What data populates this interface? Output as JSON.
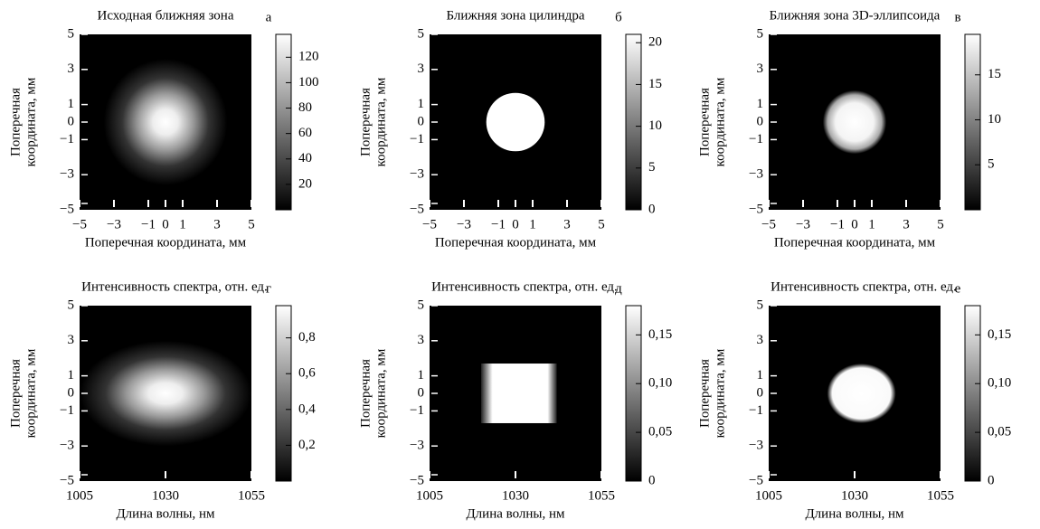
{
  "chart_data": [
    {
      "type": "heatmap",
      "title": "Исходная ближняя зона",
      "annotation": "а",
      "xlabel": "Поперечная координата, мм",
      "ylabel": [
        "Поперечная",
        "координата, мм"
      ],
      "xlim": [
        -5,
        5
      ],
      "xticks": [
        {
          "value": -5,
          "label": "−5"
        },
        {
          "value": -3,
          "label": "−3"
        },
        {
          "value": -1,
          "label": "−1"
        },
        0,
        1,
        3,
        5
      ],
      "ylim": [
        -5,
        5
      ],
      "yticks": [
        {
          "value": -5,
          "label": "−5"
        },
        {
          "value": -3,
          "label": "−3"
        },
        {
          "value": -1,
          "label": "−1"
        },
        0,
        1,
        3,
        5
      ],
      "clim": [
        0,
        138
      ],
      "cticks": [
        20,
        40,
        60,
        80,
        100,
        120
      ]
    },
    {
      "type": "heatmap",
      "title": "Ближняя зона цилиндра",
      "annotation": "б",
      "xlabel": "Поперечная координата, мм",
      "ylabel": [
        "Поперечная",
        "координата, мм"
      ],
      "xlim": [
        -5,
        5
      ],
      "xticks": [
        {
          "value": -5,
          "label": "−5"
        },
        {
          "value": -3,
          "label": "−3"
        },
        {
          "value": -1,
          "label": "−1"
        },
        0,
        1,
        3,
        5
      ],
      "ylim": [
        -5,
        5
      ],
      "yticks": [
        {
          "value": -5,
          "label": "−5"
        },
        {
          "value": -3,
          "label": "−3"
        },
        {
          "value": -1,
          "label": "−1"
        },
        0,
        1,
        3,
        5
      ],
      "clim": [
        0,
        21
      ],
      "cticks": [
        0,
        5,
        10,
        15,
        20
      ]
    },
    {
      "type": "heatmap",
      "title": "Ближняя зона 3D-эллипсоида",
      "annotation": "в",
      "xlabel": "Поперечная координата, мм",
      "ylabel": [
        "Поперечная",
        "координата, мм"
      ],
      "xlim": [
        -5,
        5
      ],
      "xticks": [
        {
          "value": -5,
          "label": "−5"
        },
        {
          "value": -3,
          "label": "−3"
        },
        {
          "value": -1,
          "label": "−1"
        },
        0,
        1,
        3,
        5
      ],
      "ylim": [
        -5,
        5
      ],
      "yticks": [
        {
          "value": -5,
          "label": "−5"
        },
        {
          "value": -3,
          "label": "−3"
        },
        {
          "value": -1,
          "label": "−1"
        },
        0,
        1,
        3,
        5
      ],
      "clim": [
        0,
        19.5
      ],
      "cticks": [
        5,
        10,
        15
      ]
    },
    {
      "type": "heatmap",
      "title": "Интенсивность спектра, отн. ед.",
      "annotation": "г",
      "xlabel": "Длина волны, нм",
      "ylabel": [
        "Поперечная",
        "координата, мм"
      ],
      "xlim": [
        1005,
        1055
      ],
      "xticks": [
        1005,
        1030,
        1055
      ],
      "ylim": [
        -5,
        5
      ],
      "yticks": [
        {
          "value": -5,
          "label": "−5"
        },
        {
          "value": -3,
          "label": "−3"
        },
        {
          "value": -1,
          "label": "−1"
        },
        0,
        1,
        3,
        5
      ],
      "clim": [
        0,
        0.98
      ],
      "cticks": [
        {
          "value": 0.2,
          "label": "0,2"
        },
        {
          "value": 0.4,
          "label": "0,4"
        },
        {
          "value": 0.6,
          "label": "0,6"
        },
        {
          "value": 0.8,
          "label": "0,8"
        }
      ]
    },
    {
      "type": "heatmap",
      "title": "Интенсивность спектра, отн. ед.",
      "annotation": "д",
      "xlabel": "Длина волны, нм",
      "ylabel": [
        "Поперечная",
        "координата, мм"
      ],
      "xlim": [
        1005,
        1055
      ],
      "xticks": [
        1005,
        1030,
        1055
      ],
      "ylim": [
        -5,
        5
      ],
      "yticks": [
        {
          "value": -5,
          "label": "−5"
        },
        {
          "value": -3,
          "label": "−3"
        },
        {
          "value": -1,
          "label": "−1"
        },
        0,
        1,
        3,
        5
      ],
      "clim": [
        0,
        0.18
      ],
      "cticks": [
        0,
        {
          "value": 0.05,
          "label": "0,05"
        },
        {
          "value": 0.1,
          "label": "0,10"
        },
        {
          "value": 0.15,
          "label": "0,15"
        }
      ]
    },
    {
      "type": "heatmap",
      "title": "Интенсивность спектра, отн. ед.",
      "annotation": "е",
      "xlabel": "Длина волны, нм",
      "ylabel": [
        "Поперечная",
        "координата, мм"
      ],
      "xlim": [
        1005,
        1055
      ],
      "xticks": [
        1005,
        1030,
        1055
      ],
      "ylim": [
        -5,
        5
      ],
      "yticks": [
        {
          "value": -5,
          "label": "−5"
        },
        {
          "value": -3,
          "label": "−3"
        },
        {
          "value": -1,
          "label": "−1"
        },
        0,
        1,
        3,
        5
      ],
      "clim": [
        0,
        0.18
      ],
      "cticks": [
        0,
        {
          "value": 0.05,
          "label": "0,05"
        },
        {
          "value": 0.1,
          "label": "0,10"
        },
        {
          "value": 0.15,
          "label": "0,15"
        }
      ]
    }
  ]
}
